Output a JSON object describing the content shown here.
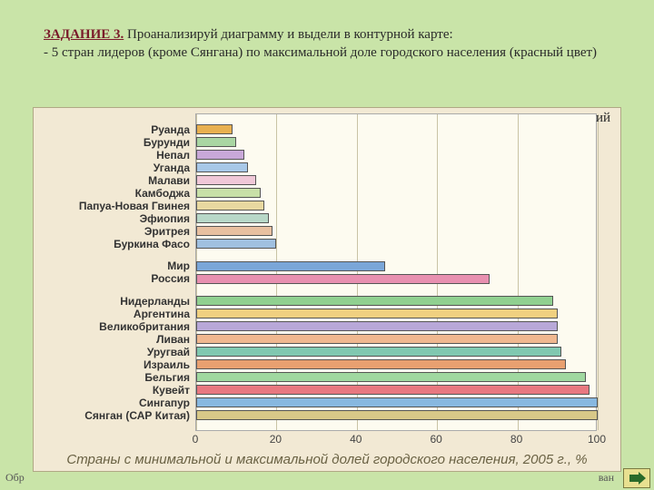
{
  "task": {
    "title": "ЗАДАНИЕ 3.",
    "line1": " Проанализируй диаграмму и выдели в контурной карте:",
    "line2": "- 5 стран  лидеров (кроме Сянгана)  по максимальной  доле городского населения (красный цвет)",
    "line3_partial": "ий"
  },
  "chart": {
    "type": "bar-horizontal",
    "background_color": "#f2e9d4",
    "plot_bg": "#fdfbf0",
    "grid_color": "#c9c3a5",
    "xlim": [
      0,
      100
    ],
    "xticks": [
      0,
      20,
      40,
      60,
      80,
      100
    ],
    "row_height_pct": 4.0,
    "group_gaps_after": [
      "Буркина Фасо",
      "Россия"
    ],
    "gap_pct": 3.0,
    "series": [
      {
        "label": "Руанда",
        "value": 9,
        "color": "#e8b050"
      },
      {
        "label": "Бурунди",
        "value": 10,
        "color": "#a9d6a3"
      },
      {
        "label": "Непал",
        "value": 12,
        "color": "#c8a8d8"
      },
      {
        "label": "Уганда",
        "value": 13,
        "color": "#a8c8e8"
      },
      {
        "label": "Малави",
        "value": 15,
        "color": "#f0c8d8"
      },
      {
        "label": "Камбоджа",
        "value": 16,
        "color": "#c8e0a8"
      },
      {
        "label": "Папуа-Новая Гвинея",
        "value": 17,
        "color": "#e8d8a0"
      },
      {
        "label": "Эфиопия",
        "value": 18,
        "color": "#b8d8c8"
      },
      {
        "label": "Эритрея",
        "value": 19,
        "color": "#e8c0a0"
      },
      {
        "label": "Буркина Фасо",
        "value": 20,
        "color": "#a0c0e0"
      },
      {
        "label": "Мир",
        "value": 47,
        "color": "#7aa6d8"
      },
      {
        "label": "Россия",
        "value": 73,
        "color": "#e890b0"
      },
      {
        "label": "Нидерланды",
        "value": 89,
        "color": "#90d090"
      },
      {
        "label": "Аргентина",
        "value": 90,
        "color": "#f0d080"
      },
      {
        "label": "Великобритания",
        "value": 90,
        "color": "#b8a8d8"
      },
      {
        "label": "Ливан",
        "value": 90,
        "color": "#f0b890"
      },
      {
        "label": "Уругвай",
        "value": 91,
        "color": "#80c8b0"
      },
      {
        "label": "Израиль",
        "value": 92,
        "color": "#e8a070"
      },
      {
        "label": "Бельгия",
        "value": 97,
        "color": "#a0d8a0"
      },
      {
        "label": "Кувейт",
        "value": 98,
        "color": "#e87880"
      },
      {
        "label": "Сингапур",
        "value": 100,
        "color": "#88b8e0"
      },
      {
        "label": "Сянган (САР Китая)",
        "value": 100,
        "color": "#d8c888"
      }
    ],
    "caption": "Страны с минимальной и максимальной долей городского населения, 2005 г., %"
  },
  "footer": {
    "left": "Обр",
    "right": "ван"
  },
  "nav": {
    "icon": "arrow-right-icon",
    "color": "#2a6a2a"
  }
}
